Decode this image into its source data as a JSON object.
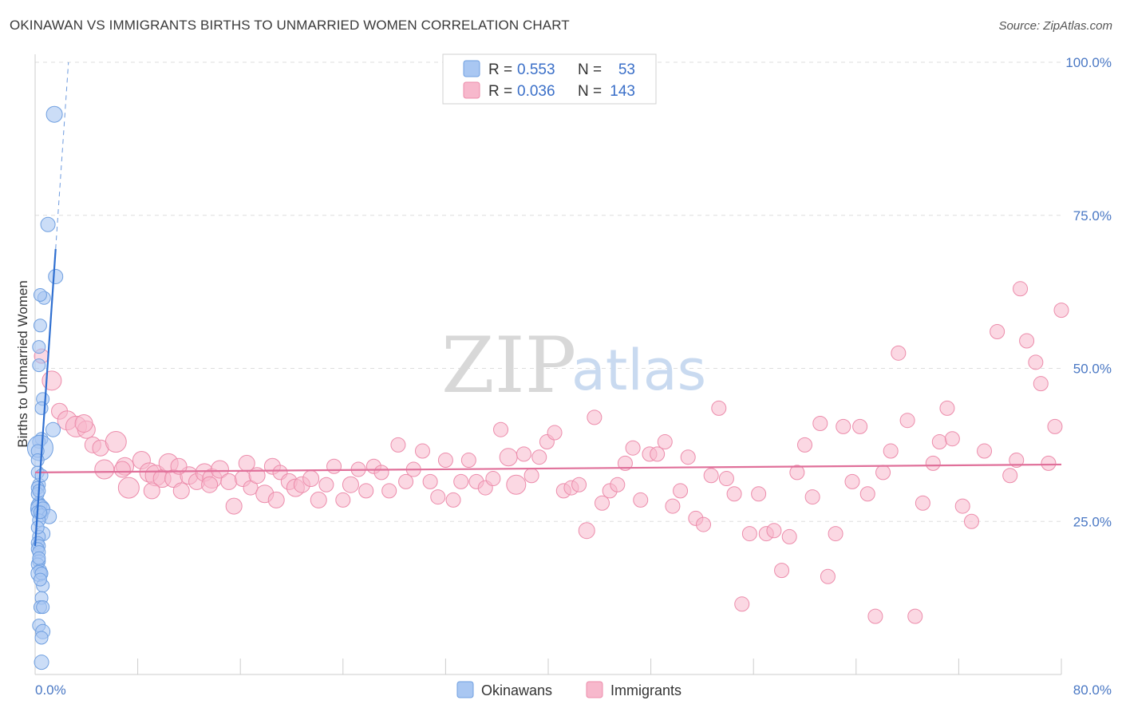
{
  "title": "OKINAWAN VS IMMIGRANTS BIRTHS TO UNMARRIED WOMEN CORRELATION CHART",
  "source": "Source: ZipAtlas.com",
  "colors": {
    "blue_fill": "#a9c7f2",
    "blue_stroke": "#6f9fe0",
    "blue_line": "#2f6fd0",
    "pink_fill": "#f7b8cc",
    "pink_stroke": "#ec8cab",
    "pink_line": "#e0709a",
    "grid": "#dddddd",
    "tick_text": "#4a78c4"
  },
  "watermark": {
    "zip": "ZIP",
    "atlas": "atlas"
  },
  "legend": {
    "rows": [
      {
        "r_label": "R =",
        "r_value": "0.553",
        "n_label": "N =",
        "n_value": "53"
      },
      {
        "r_label": "R =",
        "r_value": "0.036",
        "n_label": "N =",
        "n_value": "143"
      }
    ]
  },
  "bottom_legend": {
    "okinawans": "Okinawans",
    "immigrants": "Immigrants"
  },
  "chart_data": {
    "type": "scatter",
    "title": "OKINAWAN VS IMMIGRANTS BIRTHS TO UNMARRIED WOMEN CORRELATION CHART",
    "xlabel": "",
    "ylabel": "Births to Unmarried Women",
    "xlim": [
      0,
      80
    ],
    "ylim": [
      0,
      100
    ],
    "x_tick_labels": [
      "0.0%",
      "80.0%"
    ],
    "y_ticks": [
      25,
      50,
      75,
      100
    ],
    "y_tick_labels": [
      "25.0%",
      "50.0%",
      "75.0%",
      "100.0%"
    ],
    "series": [
      {
        "name": "Okinawans",
        "color": "#a9c7f2",
        "r": 0.553,
        "n": 53,
        "trend": {
          "x": [
            0.0,
            1.6
          ],
          "y": [
            21.0,
            69.5
          ],
          "dashed_to": [
            2.6,
            100
          ]
        },
        "points": [
          [
            1.5,
            91.5,
            10
          ],
          [
            1.0,
            73.5,
            9
          ],
          [
            1.6,
            65,
            9
          ],
          [
            0.7,
            61.5,
            8
          ],
          [
            0.4,
            62,
            8
          ],
          [
            0.4,
            57,
            8
          ],
          [
            0.3,
            53.5,
            8
          ],
          [
            0.3,
            50.5,
            8
          ],
          [
            0.6,
            45,
            8
          ],
          [
            0.5,
            43.5,
            8
          ],
          [
            1.4,
            40,
            9
          ],
          [
            0.5,
            38.5,
            8
          ],
          [
            0.3,
            38,
            8
          ],
          [
            0.4,
            37,
            16
          ],
          [
            0.2,
            36.5,
            8
          ],
          [
            0.2,
            33,
            8
          ],
          [
            0.3,
            31,
            8
          ],
          [
            0.2,
            30.5,
            8
          ],
          [
            0.3,
            28,
            8
          ],
          [
            0.3,
            27.5,
            10
          ],
          [
            0.4,
            27,
            12
          ],
          [
            0.6,
            27,
            9
          ],
          [
            0.2,
            26.5,
            8
          ],
          [
            0.5,
            26,
            8
          ],
          [
            1.1,
            25.8,
            9
          ],
          [
            0.3,
            25.2,
            8
          ],
          [
            0.6,
            23,
            9
          ],
          [
            0.3,
            22.5,
            8
          ],
          [
            0.2,
            21.5,
            8
          ],
          [
            0.3,
            21,
            8
          ],
          [
            0.2,
            20.5,
            8
          ],
          [
            0.3,
            20,
            8
          ],
          [
            0.3,
            18.5,
            8
          ],
          [
            0.2,
            18,
            8
          ],
          [
            0.4,
            17,
            8
          ],
          [
            0.3,
            16.5,
            10
          ],
          [
            0.5,
            16.5,
            8
          ],
          [
            0.6,
            14.5,
            8
          ],
          [
            0.5,
            12.5,
            8
          ],
          [
            0.4,
            11,
            8
          ],
          [
            0.6,
            11,
            8
          ],
          [
            0.3,
            8,
            8
          ],
          [
            0.6,
            7,
            9
          ],
          [
            0.5,
            6,
            8
          ],
          [
            0.5,
            2,
            9
          ],
          [
            0.2,
            29.5,
            8
          ],
          [
            0.4,
            26.5,
            8
          ],
          [
            0.2,
            24,
            8
          ],
          [
            0.3,
            19,
            8
          ],
          [
            0.4,
            15.5,
            8
          ],
          [
            0.2,
            35,
            8
          ],
          [
            0.5,
            32.5,
            8
          ],
          [
            0.3,
            30,
            8
          ]
        ]
      },
      {
        "name": "Immigrants",
        "color": "#f7b8cc",
        "r": 0.036,
        "n": 143,
        "trend": {
          "x": [
            0,
            80
          ],
          "y": [
            33.0,
            34.3
          ]
        },
        "points": [
          [
            0.5,
            52,
            9
          ],
          [
            1.3,
            48,
            12
          ],
          [
            1.9,
            43,
            10
          ],
          [
            2.5,
            41.5,
            12
          ],
          [
            3.2,
            40.5,
            13
          ],
          [
            4.0,
            40,
            11
          ],
          [
            4.5,
            37.5,
            10
          ],
          [
            5.1,
            37,
            10
          ],
          [
            6.3,
            38,
            13
          ],
          [
            5.4,
            33.5,
            12
          ],
          [
            7.0,
            34,
            11
          ],
          [
            7.3,
            30.5,
            13
          ],
          [
            8.3,
            35,
            11
          ],
          [
            8.9,
            33,
            12
          ],
          [
            9.4,
            32.5,
            13
          ],
          [
            9.9,
            32,
            11
          ],
          [
            10.4,
            34.5,
            12
          ],
          [
            10.8,
            32,
            11
          ],
          [
            11.4,
            30,
            10
          ],
          [
            12.0,
            32.5,
            11
          ],
          [
            12.6,
            31.5,
            10
          ],
          [
            13.2,
            33,
            11
          ],
          [
            13.8,
            32,
            12
          ],
          [
            14.4,
            33.5,
            11
          ],
          [
            15.1,
            31.5,
            10
          ],
          [
            15.5,
            27.5,
            10
          ],
          [
            16.2,
            32,
            10
          ],
          [
            16.8,
            30.5,
            9
          ],
          [
            17.3,
            32.5,
            10
          ],
          [
            17.9,
            29.5,
            11
          ],
          [
            18.5,
            34,
            10
          ],
          [
            19.1,
            33,
            9
          ],
          [
            19.8,
            31.5,
            10
          ],
          [
            20.3,
            30.5,
            11
          ],
          [
            20.8,
            31,
            10
          ],
          [
            21.5,
            32,
            10
          ],
          [
            22.1,
            28.5,
            10
          ],
          [
            22.7,
            31,
            9
          ],
          [
            23.3,
            34,
            9
          ],
          [
            24.0,
            28.5,
            9
          ],
          [
            24.6,
            31,
            10
          ],
          [
            25.2,
            33.5,
            9
          ],
          [
            25.8,
            30,
            9
          ],
          [
            26.4,
            34,
            9
          ],
          [
            27.0,
            33,
            9
          ],
          [
            27.6,
            30,
            9
          ],
          [
            28.3,
            37.5,
            9
          ],
          [
            28.9,
            31.5,
            9
          ],
          [
            29.5,
            33.5,
            9
          ],
          [
            30.2,
            36.5,
            9
          ],
          [
            30.8,
            31.5,
            9
          ],
          [
            31.4,
            29,
            9
          ],
          [
            32.0,
            35,
            9
          ],
          [
            32.6,
            28.5,
            9
          ],
          [
            33.2,
            31.5,
            9
          ],
          [
            33.8,
            35,
            9
          ],
          [
            34.4,
            31.5,
            9
          ],
          [
            35.1,
            30.5,
            9
          ],
          [
            35.7,
            32,
            9
          ],
          [
            36.3,
            40,
            9
          ],
          [
            36.9,
            35.5,
            11
          ],
          [
            37.5,
            31,
            12
          ],
          [
            38.1,
            36,
            9
          ],
          [
            38.7,
            32.5,
            9
          ],
          [
            39.3,
            35.5,
            9
          ],
          [
            39.9,
            38,
            9
          ],
          [
            40.5,
            39.5,
            9
          ],
          [
            41.2,
            30,
            9
          ],
          [
            41.8,
            30.5,
            9
          ],
          [
            42.4,
            31,
            9
          ],
          [
            43.0,
            23.5,
            10
          ],
          [
            43.6,
            42,
            9
          ],
          [
            44.2,
            28,
            9
          ],
          [
            44.8,
            30,
            9
          ],
          [
            45.4,
            31,
            9
          ],
          [
            46.0,
            34.5,
            9
          ],
          [
            46.6,
            37,
            9
          ],
          [
            47.2,
            28.5,
            9
          ],
          [
            47.9,
            36,
            9
          ],
          [
            48.5,
            36,
            9
          ],
          [
            49.1,
            38,
            9
          ],
          [
            49.7,
            27.5,
            9
          ],
          [
            50.3,
            30,
            9
          ],
          [
            50.9,
            35.5,
            9
          ],
          [
            51.5,
            25.5,
            9
          ],
          [
            52.1,
            24.5,
            9
          ],
          [
            52.7,
            32.5,
            9
          ],
          [
            53.3,
            43.5,
            9
          ],
          [
            53.9,
            32,
            9
          ],
          [
            54.5,
            29.5,
            9
          ],
          [
            55.1,
            11.5,
            9
          ],
          [
            55.7,
            23,
            9
          ],
          [
            56.4,
            29.5,
            9
          ],
          [
            57.0,
            23,
            9
          ],
          [
            57.6,
            23.5,
            9
          ],
          [
            58.2,
            17,
            9
          ],
          [
            58.8,
            22.5,
            9
          ],
          [
            59.4,
            33,
            9
          ],
          [
            60.0,
            37.5,
            9
          ],
          [
            60.6,
            29,
            9
          ],
          [
            61.2,
            41,
            9
          ],
          [
            61.8,
            16,
            9
          ],
          [
            62.4,
            23,
            9
          ],
          [
            63.0,
            40.5,
            9
          ],
          [
            63.7,
            31.5,
            9
          ],
          [
            64.3,
            40.5,
            9
          ],
          [
            64.9,
            29.5,
            9
          ],
          [
            65.5,
            9.5,
            9
          ],
          [
            66.1,
            33,
            9
          ],
          [
            66.7,
            36.5,
            9
          ],
          [
            67.3,
            52.5,
            9
          ],
          [
            68.0,
            41.5,
            9
          ],
          [
            68.6,
            9.5,
            9
          ],
          [
            69.2,
            28,
            9
          ],
          [
            70.0,
            34.5,
            9
          ],
          [
            70.5,
            38,
            9
          ],
          [
            71.1,
            43.5,
            9
          ],
          [
            71.5,
            38.5,
            9
          ],
          [
            72.3,
            27.5,
            9
          ],
          [
            73.0,
            25,
            9
          ],
          [
            74.0,
            36.5,
            9
          ],
          [
            75.0,
            56,
            9
          ],
          [
            76.0,
            32.5,
            9
          ],
          [
            76.5,
            35,
            9
          ],
          [
            76.8,
            63,
            9
          ],
          [
            77.3,
            54.5,
            9
          ],
          [
            78.0,
            51,
            9
          ],
          [
            78.4,
            47.5,
            9
          ],
          [
            79.0,
            34.5,
            9
          ],
          [
            79.5,
            40.5,
            9
          ],
          [
            80.0,
            59.5,
            9
          ],
          [
            3.8,
            41,
            11
          ],
          [
            6.8,
            33.5,
            10
          ],
          [
            9.1,
            30,
            10
          ],
          [
            11.2,
            34,
            10
          ],
          [
            13.6,
            31,
            10
          ],
          [
            16.5,
            34.5,
            10
          ],
          [
            18.8,
            28.5,
            10
          ]
        ]
      }
    ]
  }
}
